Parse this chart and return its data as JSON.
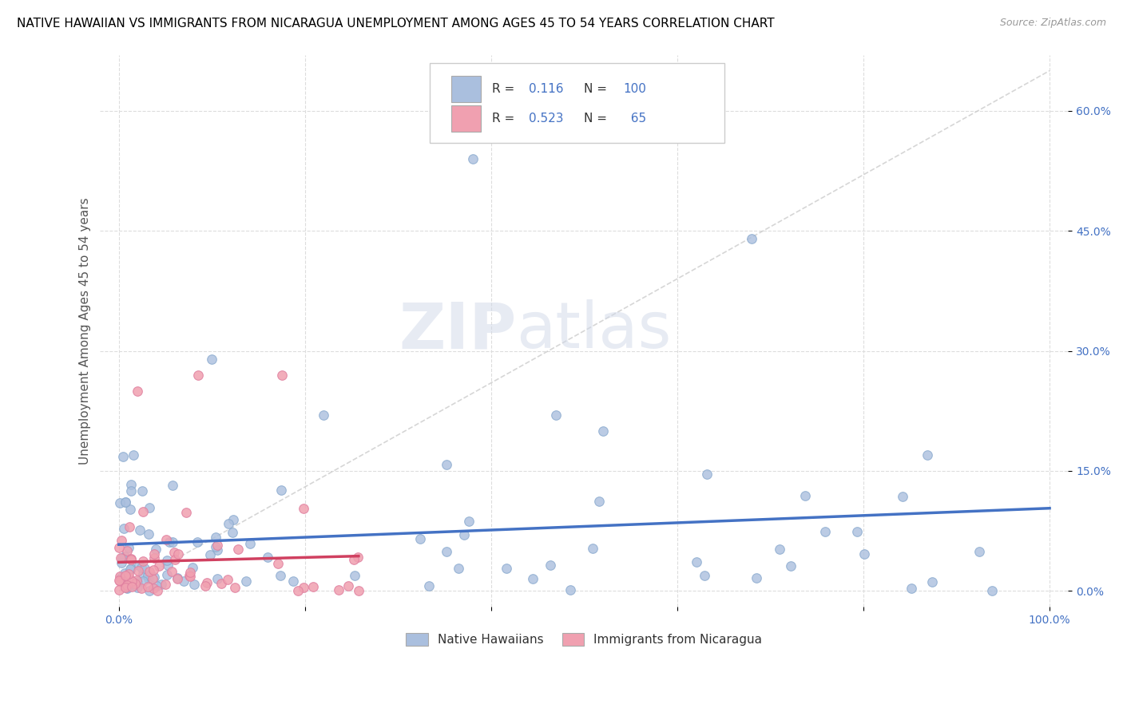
{
  "title": "NATIVE HAWAIIAN VS IMMIGRANTS FROM NICARAGUA UNEMPLOYMENT AMONG AGES 45 TO 54 YEARS CORRELATION CHART",
  "source": "Source: ZipAtlas.com",
  "ylabel": "Unemployment Among Ages 45 to 54 years",
  "xlim": [
    -0.02,
    1.02
  ],
  "ylim": [
    -0.02,
    0.67
  ],
  "ytick_vals": [
    0.0,
    0.15,
    0.3,
    0.45,
    0.6
  ],
  "ytick_labels": [
    "0.0%",
    "15.0%",
    "30.0%",
    "45.0%",
    "60.0%"
  ],
  "blue_fill": "#AABFDE",
  "blue_edge": "#8AAACE",
  "pink_fill": "#F0A0B0",
  "pink_edge": "#E080A0",
  "blue_line": "#4472C4",
  "pink_line": "#D04060",
  "diag_color": "#CCCCCC",
  "R_blue": 0.116,
  "N_blue": 100,
  "R_pink": 0.523,
  "N_pink": 65,
  "legend_label_blue": "Native Hawaiians",
  "legend_label_pink": "Immigrants from Nicaragua",
  "watermark_zip": "ZIP",
  "watermark_atlas": "atlas",
  "bg_color": "#FFFFFF",
  "grid_color": "#DDDDDD",
  "title_fontsize": 11,
  "ylabel_fontsize": 11,
  "tick_fontsize": 10,
  "accent_color": "#4472C4",
  "legend_r_n_color": "#4472C4",
  "legend_text_color": "#333333"
}
